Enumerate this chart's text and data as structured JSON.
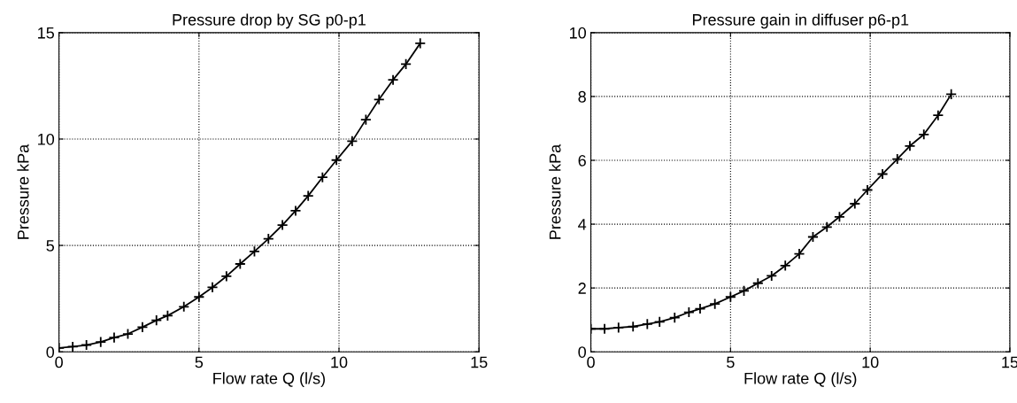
{
  "chart_data": [
    {
      "type": "line",
      "title": "Pressure drop by SG p0-p1",
      "xlabel": "Flow rate Q (l/s)",
      "ylabel": "Pressure kPa",
      "xlim": [
        0,
        15
      ],
      "ylim": [
        0,
        15
      ],
      "xticks": [
        0,
        5,
        10,
        15
      ],
      "yticks": [
        0,
        5,
        10,
        15
      ],
      "grid": true,
      "marker": "cross",
      "line_style": "solid",
      "series": [
        {
          "color": "#000000",
          "x": [
            0,
            0.49,
            0.98,
            1.49,
            1.97,
            2.46,
            2.98,
            3.48,
            3.88,
            4.46,
            5.0,
            5.48,
            5.98,
            6.47,
            6.98,
            7.48,
            7.98,
            8.45,
            8.9,
            9.41,
            9.91,
            10.47,
            10.96,
            11.43,
            11.93,
            12.39,
            12.9
          ],
          "values": [
            0.18,
            0.24,
            0.32,
            0.46,
            0.67,
            0.84,
            1.16,
            1.48,
            1.7,
            2.12,
            2.58,
            3.03,
            3.55,
            4.13,
            4.72,
            5.31,
            5.96,
            6.63,
            7.33,
            8.2,
            9.01,
            9.9,
            10.91,
            11.86,
            12.78,
            13.52,
            14.5
          ]
        }
      ]
    },
    {
      "type": "line",
      "title": "Pressure gain in diffuser p6-p1",
      "xlabel": "Flow rate Q (l/s)",
      "ylabel": "Pressure kPa",
      "xlim": [
        0,
        15
      ],
      "ylim": [
        0,
        10
      ],
      "xticks": [
        0,
        5,
        10,
        15
      ],
      "yticks": [
        0,
        2,
        4,
        6,
        8,
        10
      ],
      "grid": true,
      "marker": "cross",
      "line_style": "solid",
      "series": [
        {
          "color": "#000000",
          "x": [
            0,
            0.49,
            0.99,
            1.51,
            2.02,
            2.46,
            3.0,
            3.51,
            3.91,
            4.44,
            5.0,
            5.48,
            5.98,
            6.47,
            6.96,
            7.46,
            7.95,
            8.45,
            8.9,
            9.45,
            9.9,
            10.44,
            10.97,
            11.42,
            11.92,
            12.43,
            12.9
          ],
          "values": [
            0.72,
            0.72,
            0.76,
            0.79,
            0.87,
            0.94,
            1.07,
            1.24,
            1.35,
            1.5,
            1.72,
            1.91,
            2.15,
            2.38,
            2.7,
            3.07,
            3.6,
            3.91,
            4.23,
            4.64,
            5.07,
            5.57,
            6.04,
            6.45,
            6.81,
            7.41,
            8.07
          ]
        }
      ]
    }
  ]
}
